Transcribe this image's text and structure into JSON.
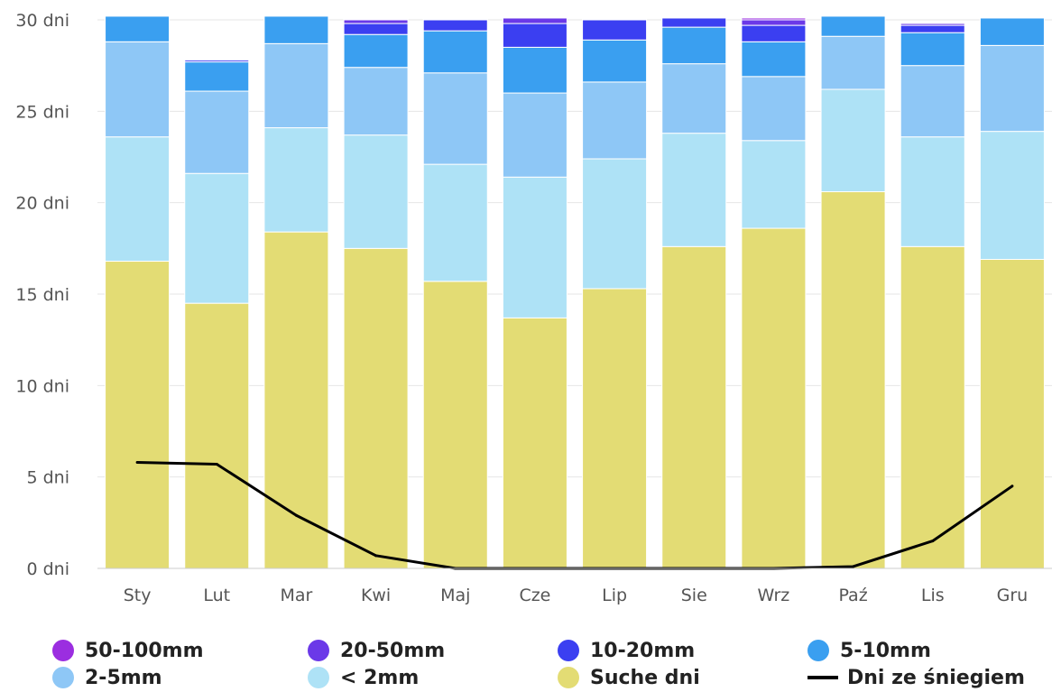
{
  "chart_data": {
    "type": "bar",
    "stacked": true,
    "categories": [
      "Sty",
      "Lut",
      "Mar",
      "Kwi",
      "Maj",
      "Cze",
      "Lip",
      "Sie",
      "Wrz",
      "Paź",
      "Lis",
      "Gru"
    ],
    "y_ticks": [
      "0 dni",
      "5 dni",
      "10 dni",
      "15 dni",
      "20 dni",
      "25 dni",
      "30 dni"
    ],
    "ylim": [
      0,
      30
    ],
    "grid": true,
    "series": [
      {
        "name": "Suche dni",
        "color": "#e3dc74",
        "values": [
          16.8,
          14.5,
          18.4,
          17.5,
          15.7,
          13.7,
          15.3,
          17.6,
          18.6,
          20.6,
          17.6,
          16.9
        ]
      },
      {
        "name": "< 2mm",
        "color": "#aee2f6",
        "values": [
          6.8,
          7.1,
          5.7,
          6.2,
          6.4,
          7.7,
          7.1,
          6.2,
          4.8,
          5.6,
          6.0,
          7.0
        ]
      },
      {
        "name": "2-5mm",
        "color": "#8ec7f6",
        "values": [
          5.2,
          4.5,
          4.6,
          3.7,
          5.0,
          4.6,
          4.2,
          3.8,
          3.5,
          2.9,
          3.9,
          4.7
        ]
      },
      {
        "name": "5-10mm",
        "color": "#3a9ff0",
        "values": [
          1.4,
          1.6,
          1.5,
          1.8,
          2.3,
          2.5,
          2.3,
          2.0,
          1.9,
          1.1,
          1.8,
          1.5
        ]
      },
      {
        "name": "10-20mm",
        "color": "#3b3ff1",
        "values": [
          0,
          0.1,
          0,
          0.6,
          0.6,
          1.3,
          1.1,
          0.5,
          0.9,
          0,
          0.4,
          0
        ]
      },
      {
        "name": "20-50mm",
        "color": "#6b39e8",
        "values": [
          0,
          0.05,
          0,
          0.2,
          0,
          0.3,
          0,
          0,
          0.3,
          0,
          0.1,
          0
        ]
      },
      {
        "name": "50-100mm",
        "color": "#9b2ee0",
        "values": [
          0,
          0,
          0,
          0.05,
          0,
          0,
          0,
          0,
          0.1,
          0,
          0,
          0
        ]
      }
    ],
    "line": {
      "name": "Dni ze śniegiem",
      "color": "#000000",
      "values": [
        5.8,
        5.7,
        2.9,
        0.7,
        0,
        0,
        0,
        0,
        0,
        0.1,
        1.5,
        4.5
      ]
    }
  },
  "legend": [
    {
      "label": "50-100mm",
      "color": "#9b2ee0",
      "kind": "dot"
    },
    {
      "label": "20-50mm",
      "color": "#6b39e8",
      "kind": "dot"
    },
    {
      "label": "10-20mm",
      "color": "#3b3ff1",
      "kind": "dot"
    },
    {
      "label": "5-10mm",
      "color": "#3a9ff0",
      "kind": "dot"
    },
    {
      "label": "2-5mm",
      "color": "#8ec7f6",
      "kind": "dot"
    },
    {
      "label": "< 2mm",
      "color": "#aee2f6",
      "kind": "dot"
    },
    {
      "label": "Suche dni",
      "color": "#e3dc74",
      "kind": "dot"
    },
    {
      "label": "Dni ze śniegiem",
      "color": "#000000",
      "kind": "line"
    }
  ]
}
